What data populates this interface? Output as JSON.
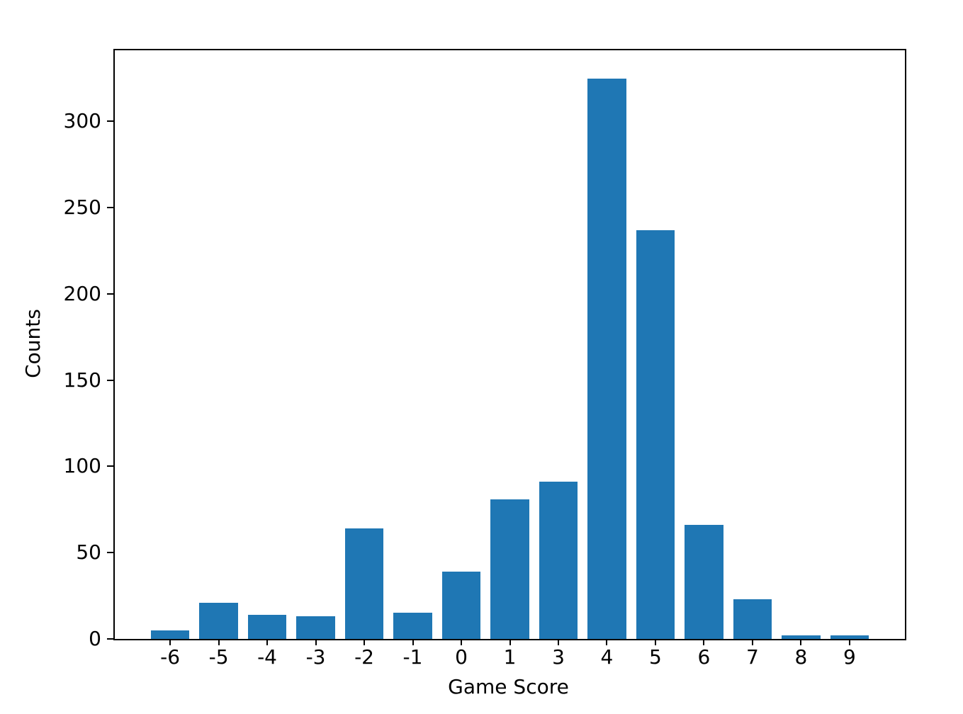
{
  "chart_data": {
    "type": "bar",
    "categories": [
      "-6",
      "-5",
      "-4",
      "-3",
      "-2",
      "-1",
      "0",
      "1",
      "3",
      "4",
      "5",
      "6",
      "7",
      "8",
      "9"
    ],
    "values": [
      5,
      21,
      14,
      13,
      64,
      15,
      39,
      81,
      91,
      325,
      237,
      66,
      23,
      2,
      2
    ],
    "xlabel": "Game Score",
    "ylabel": "Counts",
    "yticks": [
      0,
      50,
      100,
      150,
      200,
      250,
      300
    ],
    "ylim": [
      0,
      341.25
    ],
    "xlim": [
      -1.14,
      15.14
    ],
    "bar_color": "#1f77b4",
    "bar_width": 0.8,
    "grid": false,
    "legend_position": "none",
    "spine_color": "#000000",
    "background_color": "#ffffff"
  }
}
